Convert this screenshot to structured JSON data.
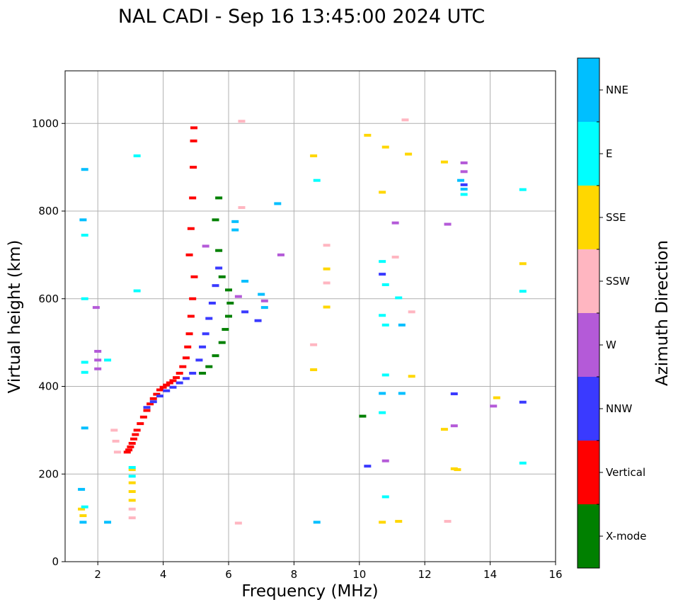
{
  "chart_data": {
    "type": "scatter",
    "title": "NAL CADI - Sep 16 13:45:00 2024 UTC",
    "xlabel": "Frequency (MHz)",
    "ylabel": "Virtual height (km)",
    "xlim": [
      1,
      16
    ],
    "ylim": [
      0,
      1120
    ],
    "xticks": [
      2,
      4,
      6,
      8,
      10,
      12,
      14,
      16
    ],
    "yticks": [
      0,
      200,
      400,
      600,
      800,
      1000
    ],
    "grid": true,
    "colorbar": {
      "label": "Azimuth Direction",
      "placement": "right",
      "categories": [
        {
          "name": "X-mode",
          "color": "#008000"
        },
        {
          "name": "Vertical",
          "color": "#ff0000"
        },
        {
          "name": "NNW",
          "color": "#3a3aff"
        },
        {
          "name": "W",
          "color": "#b45ad8"
        },
        {
          "name": "SSW",
          "color": "#ffb6c1"
        },
        {
          "name": "SSE",
          "color": "#ffd700"
        },
        {
          "name": "E",
          "color": "#00ffff"
        },
        {
          "name": "NNE",
          "color": "#00bfff"
        }
      ]
    },
    "traces": [
      {
        "direction": "Vertical",
        "points": [
          [
            2.9,
            250
          ],
          [
            2.95,
            255
          ],
          [
            3.0,
            262
          ],
          [
            3.05,
            270
          ],
          [
            3.1,
            280
          ],
          [
            3.15,
            290
          ],
          [
            3.2,
            300
          ],
          [
            3.3,
            315
          ],
          [
            3.4,
            330
          ],
          [
            3.5,
            345
          ],
          [
            3.6,
            360
          ],
          [
            3.7,
            372
          ],
          [
            3.8,
            382
          ],
          [
            3.9,
            392
          ],
          [
            4.0,
            398
          ],
          [
            4.1,
            403
          ],
          [
            4.2,
            408
          ],
          [
            4.3,
            413
          ],
          [
            4.4,
            420
          ],
          [
            4.5,
            430
          ],
          [
            4.6,
            445
          ],
          [
            4.7,
            465
          ],
          [
            4.75,
            490
          ],
          [
            4.8,
            520
          ],
          [
            4.85,
            560
          ],
          [
            4.9,
            600
          ],
          [
            4.95,
            650
          ],
          [
            4.8,
            700
          ],
          [
            4.85,
            760
          ],
          [
            4.9,
            830
          ],
          [
            4.92,
            900
          ],
          [
            4.93,
            960
          ],
          [
            4.94,
            990
          ]
        ]
      },
      {
        "direction": "NNW",
        "points": [
          [
            3.5,
            352
          ],
          [
            3.7,
            365
          ],
          [
            3.9,
            378
          ],
          [
            4.1,
            390
          ],
          [
            4.3,
            398
          ],
          [
            4.5,
            408
          ],
          [
            4.7,
            418
          ],
          [
            4.9,
            430
          ],
          [
            5.1,
            460
          ],
          [
            5.2,
            490
          ],
          [
            5.3,
            520
          ],
          [
            5.4,
            555
          ],
          [
            5.5,
            590
          ],
          [
            5.6,
            630
          ],
          [
            5.7,
            670
          ],
          [
            6.5,
            570
          ],
          [
            6.9,
            550
          ],
          [
            13.2,
            860
          ],
          [
            15.0,
            364
          ],
          [
            12.9,
            383
          ],
          [
            10.7,
            656
          ],
          [
            10.25,
            218
          ]
        ]
      },
      {
        "direction": "X-mode",
        "points": [
          [
            5.2,
            430
          ],
          [
            5.4,
            445
          ],
          [
            5.6,
            470
          ],
          [
            5.8,
            500
          ],
          [
            5.9,
            530
          ],
          [
            6.0,
            560
          ],
          [
            6.05,
            590
          ],
          [
            6.0,
            620
          ],
          [
            5.8,
            650
          ],
          [
            5.7,
            710
          ],
          [
            5.6,
            780
          ],
          [
            5.7,
            830
          ],
          [
            10.1,
            332
          ]
        ]
      },
      {
        "direction": "W",
        "points": [
          [
            2.0,
            480
          ],
          [
            2.0,
            460
          ],
          [
            2.0,
            440
          ],
          [
            1.95,
            580
          ],
          [
            5.3,
            720
          ],
          [
            6.3,
            605
          ],
          [
            7.1,
            595
          ],
          [
            7.6,
            700
          ],
          [
            11.1,
            773
          ],
          [
            12.7,
            770
          ],
          [
            13.2,
            890
          ],
          [
            13.2,
            910
          ],
          [
            14.1,
            355
          ],
          [
            12.9,
            310
          ],
          [
            10.8,
            230
          ]
        ]
      },
      {
        "direction": "SSW",
        "points": [
          [
            2.5,
            300
          ],
          [
            2.55,
            275
          ],
          [
            2.6,
            250
          ],
          [
            3.05,
            120
          ],
          [
            3.05,
            100
          ],
          [
            6.4,
            1005
          ],
          [
            6.4,
            808
          ],
          [
            6.3,
            88
          ],
          [
            9.0,
            722
          ],
          [
            9.0,
            636
          ],
          [
            11.4,
            1008
          ],
          [
            11.1,
            695
          ],
          [
            8.6,
            495
          ],
          [
            11.6,
            570
          ],
          [
            12.7,
            92
          ]
        ]
      },
      {
        "direction": "SSE",
        "points": [
          [
            1.5,
            120
          ],
          [
            1.55,
            105
          ],
          [
            3.05,
            210
          ],
          [
            3.05,
            180
          ],
          [
            3.05,
            160
          ],
          [
            3.05,
            140
          ],
          [
            8.6,
            926
          ],
          [
            8.6,
            438
          ],
          [
            9.0,
            668
          ],
          [
            9.0,
            581
          ],
          [
            10.25,
            973
          ],
          [
            10.7,
            843
          ],
          [
            10.8,
            946
          ],
          [
            11.5,
            930
          ],
          [
            12.6,
            912
          ],
          [
            12.6,
            302
          ],
          [
            12.9,
            212
          ],
          [
            13.0,
            210
          ],
          [
            14.2,
            374
          ],
          [
            15.0,
            680
          ],
          [
            11.2,
            92
          ],
          [
            10.7,
            90
          ],
          [
            11.6,
            423
          ]
        ]
      },
      {
        "direction": "E",
        "points": [
          [
            1.6,
            745
          ],
          [
            1.6,
            600
          ],
          [
            1.6,
            455
          ],
          [
            1.6,
            432
          ],
          [
            1.6,
            125
          ],
          [
            2.3,
            460
          ],
          [
            3.05,
            215
          ],
          [
            3.05,
            195
          ],
          [
            3.2,
            618
          ],
          [
            3.2,
            926
          ],
          [
            8.7,
            870
          ],
          [
            10.7,
            685
          ],
          [
            10.8,
            632
          ],
          [
            10.8,
            540
          ],
          [
            10.7,
            562
          ],
          [
            10.8,
            426
          ],
          [
            11.2,
            602
          ],
          [
            15.0,
            617
          ],
          [
            15.0,
            849
          ],
          [
            13.2,
            838
          ],
          [
            15.0,
            225
          ],
          [
            10.8,
            148
          ],
          [
            10.7,
            340
          ]
        ]
      },
      {
        "direction": "NNE",
        "points": [
          [
            1.6,
            895
          ],
          [
            1.55,
            780
          ],
          [
            1.6,
            305
          ],
          [
            1.5,
            165
          ],
          [
            1.55,
            90
          ],
          [
            2.3,
            90
          ],
          [
            6.2,
            776
          ],
          [
            6.2,
            757
          ],
          [
            6.5,
            640
          ],
          [
            7.0,
            610
          ],
          [
            7.1,
            580
          ],
          [
            7.5,
            817
          ],
          [
            8.7,
            90
          ],
          [
            11.3,
            540
          ],
          [
            11.3,
            384
          ],
          [
            10.7,
            384
          ],
          [
            13.2,
            850
          ],
          [
            13.1,
            870
          ]
        ]
      }
    ]
  }
}
